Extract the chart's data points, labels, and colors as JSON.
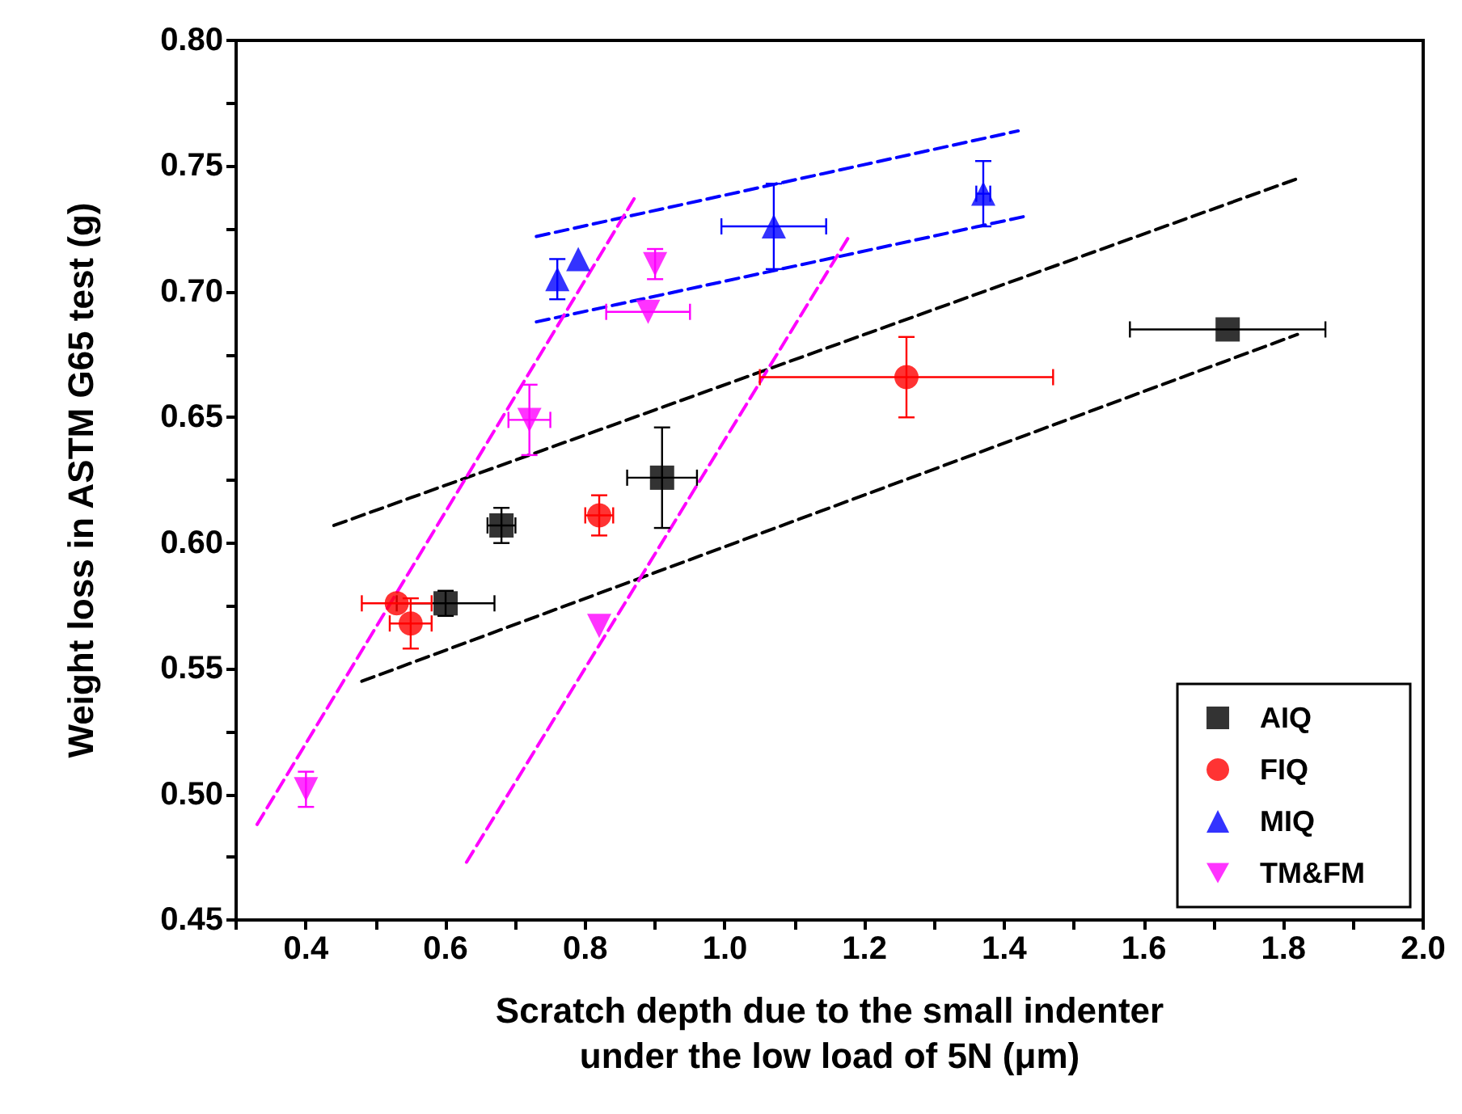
{
  "chart_data": {
    "type": "scatter",
    "xlabel": "Scratch depth due to the small indenter\nunder the low load of 5N (μm)",
    "ylabel": "Weight loss in ASTM G65 test (g)",
    "xlim": [
      0.3,
      2.0
    ],
    "ylim": [
      0.45,
      0.8
    ],
    "xticks": [
      {
        "value": 0.3,
        "label": null
      },
      0.4,
      {
        "value": 0.5,
        "label": null
      },
      0.6,
      {
        "value": 0.7,
        "label": null
      },
      0.8,
      {
        "value": 0.9,
        "label": null
      },
      {
        "value": 1.0,
        "label": "1.0"
      },
      {
        "value": 1.1,
        "label": null
      },
      1.2,
      {
        "value": 1.3,
        "label": null
      },
      1.4,
      {
        "value": 1.5,
        "label": null
      },
      1.6,
      {
        "value": 1.7,
        "label": null
      },
      1.8,
      {
        "value": 1.9,
        "label": null
      },
      {
        "value": 2.0,
        "label": "2.0"
      }
    ],
    "yticks": [
      0.45,
      {
        "value": 0.475,
        "label": null
      },
      {
        "value": 0.5,
        "label": "0.50"
      },
      {
        "value": 0.525,
        "label": null
      },
      0.55,
      {
        "value": 0.575,
        "label": null
      },
      {
        "value": 0.6,
        "label": "0.60"
      },
      {
        "value": 0.625,
        "label": null
      },
      0.65,
      {
        "value": 0.675,
        "label": null
      },
      {
        "value": 0.7,
        "label": "0.70"
      },
      {
        "value": 0.725,
        "label": null
      },
      0.75,
      {
        "value": 0.775,
        "label": null
      },
      {
        "value": 0.8,
        "label": "0.80"
      }
    ],
    "grid": false,
    "legend": "bottom right",
    "series": [
      {
        "name": "AIQ",
        "color": "#000000",
        "marker": "square",
        "x": [
          0.6,
          0.68,
          0.91,
          1.72
        ],
        "values": [
          0.576,
          0.607,
          0.626,
          0.685
        ],
        "errors": [
          0.005,
          0.007,
          0.02,
          null
        ],
        "xerrors": [
          0.07,
          0.02,
          0.05,
          0.14
        ]
      },
      {
        "name": "FIQ",
        "color": "#ff0000",
        "marker": "circle",
        "x": [
          0.53,
          0.55,
          0.82,
          1.26
        ],
        "values": [
          0.576,
          0.568,
          0.611,
          0.666
        ],
        "errors": [
          null,
          0.01,
          0.008,
          0.016
        ],
        "xerrors": [
          0.05,
          0.03,
          0.02,
          0.21
        ]
      },
      {
        "name": "MIQ",
        "color": "#0000ff",
        "marker": "triangle",
        "x": [
          0.76,
          0.79,
          1.07,
          1.37
        ],
        "values": [
          0.705,
          0.713,
          0.726,
          0.739
        ],
        "errors": [
          0.008,
          null,
          0.017,
          0.013
        ],
        "xerrors": [
          null,
          null,
          0.075,
          0.01
        ]
      },
      {
        "name": "TM&FM",
        "color": "#ff00ff",
        "marker": "triangle-down",
        "x": [
          0.4,
          0.72,
          0.82,
          0.89,
          0.9
        ],
        "values": [
          0.502,
          0.649,
          0.567,
          0.692,
          0.711
        ],
        "errors": [
          0.007,
          0.014,
          null,
          null,
          0.006
        ],
        "xerrors": [
          null,
          0.03,
          null,
          0.06,
          null
        ]
      },
      {
        "type": "line",
        "color": "#000000",
        "line_style": "dashed",
        "marker": "none",
        "x": [
          0.44,
          1.82
        ],
        "values": [
          0.607,
          0.745
        ]
      },
      {
        "type": "line",
        "color": "#000000",
        "line_style": "dashed",
        "marker": "none",
        "x": [
          0.48,
          1.82
        ],
        "values": [
          0.545,
          0.683
        ]
      },
      {
        "type": "line",
        "color": "#0000ff",
        "line_style": "dashed",
        "marker": "none",
        "x": [
          0.73,
          1.42
        ],
        "values": [
          0.722,
          0.764
        ]
      },
      {
        "type": "line",
        "color": "#0000ff",
        "line_style": "dashed",
        "marker": "none",
        "x": [
          0.73,
          1.43
        ],
        "values": [
          0.688,
          0.73
        ]
      },
      {
        "type": "line",
        "color": "#ff00ff",
        "line_style": "dashed",
        "marker": "none",
        "x": [
          0.33,
          0.87
        ],
        "values": [
          0.488,
          0.737
        ]
      },
      {
        "type": "line",
        "color": "#ff00ff",
        "line_style": "dashed",
        "marker": "none",
        "x": [
          0.63,
          1.18
        ],
        "values": [
          0.473,
          0.723
        ]
      }
    ]
  }
}
